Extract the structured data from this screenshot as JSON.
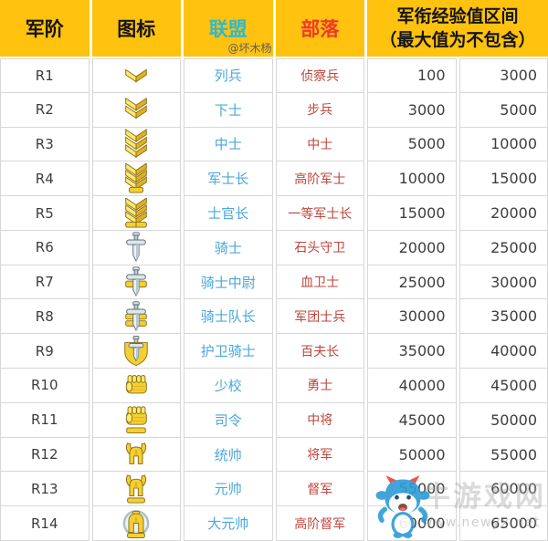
{
  "header": {
    "col_rank": "军阶",
    "col_icon": "图标",
    "col_alliance": "联盟",
    "col_tribe": "部落",
    "col_exp_line1": "军衔经验值区间",
    "col_exp_line2": "（最大值为不包含）",
    "author_watermark": "@坏木杨"
  },
  "colors": {
    "header_bg": "#FFC20E",
    "alliance_header_text": "#2FB9CE",
    "tribe_header_text": "#F0382B",
    "alliance_body_text": "#4AA8DC",
    "tribe_body_text": "#BE443B",
    "cell_border": "#D7D7D7",
    "body_text": "#3D3D3D",
    "icon_gold": "#F4CF32",
    "icon_silver": "#DCE7EA"
  },
  "table": {
    "rows": [
      {
        "rank": "R1",
        "icon": "chevron-1",
        "alliance": "列兵",
        "tribe": "侦察兵",
        "min": "100",
        "max": "3000"
      },
      {
        "rank": "R2",
        "icon": "chevron-2",
        "alliance": "下士",
        "tribe": "步兵",
        "min": "3000",
        "max": "5000"
      },
      {
        "rank": "R3",
        "icon": "chevron-3",
        "alliance": "中士",
        "tribe": "中士",
        "min": "5000",
        "max": "10000"
      },
      {
        "rank": "R4",
        "icon": "chevron-3-bar",
        "alliance": "军士长",
        "tribe": "高阶军士",
        "min": "10000",
        "max": "15000"
      },
      {
        "rank": "R5",
        "icon": "chevron-3-wide-bar",
        "alliance": "士官长",
        "tribe": "一等军士长",
        "min": "15000",
        "max": "20000"
      },
      {
        "rank": "R6",
        "icon": "sword",
        "alliance": "骑士",
        "tribe": "石头守卫",
        "min": "20000",
        "max": "25000"
      },
      {
        "rank": "R7",
        "icon": "sword-bar",
        "alliance": "骑士中尉",
        "tribe": "血卫士",
        "min": "25000",
        "max": "30000"
      },
      {
        "rank": "R8",
        "icon": "sword-2bars",
        "alliance": "骑士队长",
        "tribe": "军团士兵",
        "min": "30000",
        "max": "35000"
      },
      {
        "rank": "R9",
        "icon": "sword-shield",
        "alliance": "护卫骑士",
        "tribe": "百夫长",
        "min": "35000",
        "max": "40000"
      },
      {
        "rank": "R10",
        "icon": "fist",
        "alliance": "少校",
        "tribe": "勇士",
        "min": "40000",
        "max": "45000"
      },
      {
        "rank": "R11",
        "icon": "fist-bar",
        "alliance": "司令",
        "tribe": "中将",
        "min": "45000",
        "max": "50000"
      },
      {
        "rank": "R12",
        "icon": "helmet",
        "alliance": "统帅",
        "tribe": "将军",
        "min": "50000",
        "max": "55000"
      },
      {
        "rank": "R13",
        "icon": "helmet-bar",
        "alliance": "元帅",
        "tribe": "督军",
        "min": "55000",
        "max": "60000"
      },
      {
        "rank": "R14",
        "icon": "helmet-wreath",
        "alliance": "大元帅",
        "tribe": "高阶督军",
        "min": "60000",
        "max": "65000"
      }
    ]
  },
  "site_watermark": {
    "name": "牛游戏网",
    "url": "www.newyx.net",
    "mascot_icon": "blue-cow-mascot"
  }
}
